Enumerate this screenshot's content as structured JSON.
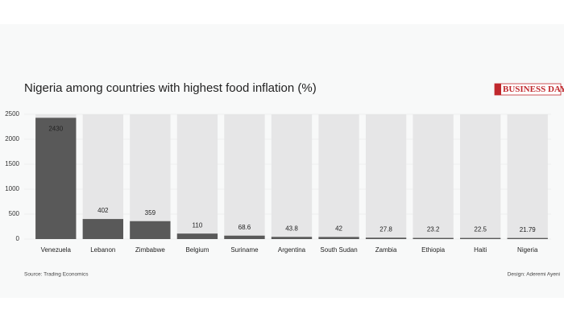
{
  "chart_data": {
    "type": "bar",
    "title": "Nigeria among countries with highest food inflation (%)",
    "categories": [
      "Venezuela",
      "Lebanon",
      "Zimbabwe",
      "Belgium",
      "Suriname",
      "Argentina",
      "South Sudan",
      "Zambia",
      "Ethiopia",
      "Haiti",
      "Nigeria"
    ],
    "values": [
      2430,
      402,
      359,
      110,
      68.6,
      43.8,
      42,
      27.8,
      23.2,
      22.5,
      21.79
    ],
    "color": "#595959",
    "ylim": [
      0,
      2500
    ],
    "yticks": [
      0,
      500,
      1000,
      1500,
      2000,
      2500
    ],
    "grid": true,
    "source": "Source: Trading Economics",
    "credit": "Design: Aderemi Ayeni",
    "logo": "BUSINESS DAY"
  }
}
